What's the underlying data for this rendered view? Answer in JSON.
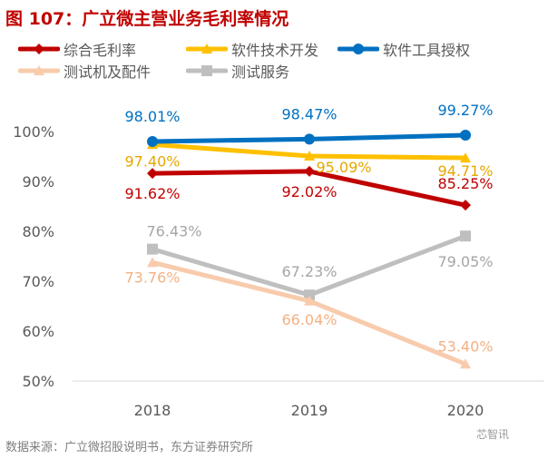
{
  "title": "图 107：广立微主营业务毛利率情况",
  "source": "数据来源：广立微招股说明书，东方证券研究所",
  "watermark": "芯智讯",
  "chart_data": {
    "type": "line",
    "title": "图 107：广立微主营业务毛利率情况",
    "categories": [
      "2018",
      "2019",
      "2020"
    ],
    "ylim": [
      50,
      100
    ],
    "yticks": [
      "50%",
      "60%",
      "70%",
      "80%",
      "90%",
      "100%"
    ],
    "grid": false,
    "legend": "top",
    "series": [
      {
        "name": "综合毛利率",
        "values": [
          91.62,
          92.02,
          85.25
        ],
        "labels": [
          "91.62%",
          "92.02%",
          "85.25%"
        ],
        "color": "#c00000",
        "marker": "diamond"
      },
      {
        "name": "软件技术开发",
        "values": [
          97.4,
          95.09,
          94.71
        ],
        "labels": [
          "97.40%",
          "95.09%",
          "94.71%"
        ],
        "color": "#ffc000",
        "marker": "triangle"
      },
      {
        "name": "软件工具授权",
        "values": [
          98.01,
          98.47,
          99.27
        ],
        "labels": [
          "98.01%",
          "98.47%",
          "99.27%"
        ],
        "color": "#0070c0",
        "marker": "circle"
      },
      {
        "name": "测试机及配件",
        "values": [
          73.76,
          66.04,
          53.4
        ],
        "labels": [
          "73.76%",
          "66.04%",
          "53.40%"
        ],
        "color": "#f8cbad",
        "marker": "triangle"
      },
      {
        "name": "测试服务",
        "values": [
          76.43,
          67.23,
          79.05
        ],
        "labels": [
          "76.43%",
          "67.23%",
          "79.05%"
        ],
        "color": "#bfbfbf",
        "marker": "square"
      }
    ]
  }
}
